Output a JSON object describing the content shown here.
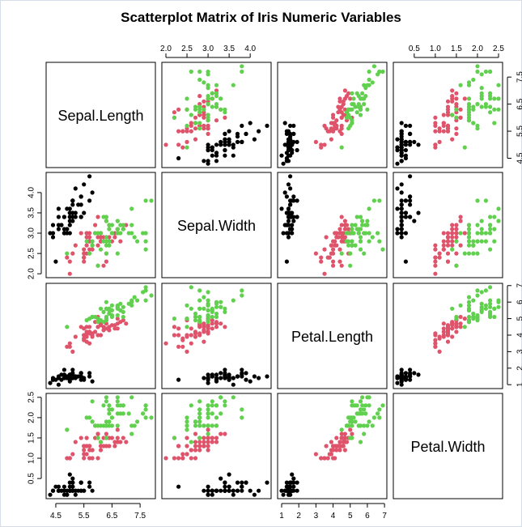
{
  "chart_data": {
    "type": "scatter",
    "title": "Scatterplot Matrix of Iris Numeric Variables",
    "variables": [
      "Sepal.Length",
      "Sepal.Width",
      "Petal.Length",
      "Petal.Width"
    ],
    "ranges": {
      "Sepal.Length": [
        4.3,
        7.9
      ],
      "Sepal.Width": [
        2.0,
        4.4
      ],
      "Petal.Length": [
        1.0,
        6.9
      ],
      "Petal.Width": [
        0.1,
        2.5
      ]
    },
    "ticks": {
      "Sepal.Length": [
        "4.5",
        "5.5",
        "6.5",
        "7.5"
      ],
      "Sepal.Width": [
        "2.0",
        "2.5",
        "3.0",
        "3.5",
        "4.0"
      ],
      "Petal.Length": [
        "1",
        "2",
        "3",
        "4",
        "5",
        "6",
        "7"
      ],
      "Petal.Width": [
        "0.5",
        "1.0",
        "1.5",
        "2.0",
        "2.5"
      ]
    },
    "groups": [
      {
        "color": "#000000",
        "points": [
          [
            5.1,
            3.5,
            1.4,
            0.2
          ],
          [
            4.9,
            3.0,
            1.4,
            0.2
          ],
          [
            4.7,
            3.2,
            1.3,
            0.2
          ],
          [
            4.6,
            3.1,
            1.5,
            0.2
          ],
          [
            5.0,
            3.6,
            1.4,
            0.2
          ],
          [
            5.4,
            3.9,
            1.7,
            0.4
          ],
          [
            4.6,
            3.4,
            1.4,
            0.3
          ],
          [
            5.0,
            3.4,
            1.5,
            0.2
          ],
          [
            4.4,
            2.9,
            1.4,
            0.2
          ],
          [
            4.9,
            3.1,
            1.5,
            0.1
          ],
          [
            5.4,
            3.7,
            1.5,
            0.2
          ],
          [
            4.8,
            3.4,
            1.6,
            0.2
          ],
          [
            4.8,
            3.0,
            1.4,
            0.1
          ],
          [
            4.3,
            3.0,
            1.1,
            0.1
          ],
          [
            5.8,
            4.0,
            1.2,
            0.2
          ],
          [
            5.7,
            4.4,
            1.5,
            0.4
          ],
          [
            5.4,
            3.9,
            1.3,
            0.4
          ],
          [
            5.1,
            3.5,
            1.4,
            0.3
          ],
          [
            5.7,
            3.8,
            1.7,
            0.3
          ],
          [
            5.1,
            3.8,
            1.5,
            0.3
          ],
          [
            5.4,
            3.4,
            1.7,
            0.2
          ],
          [
            5.1,
            3.7,
            1.5,
            0.4
          ],
          [
            4.6,
            3.6,
            1.0,
            0.2
          ],
          [
            5.1,
            3.3,
            1.7,
            0.5
          ],
          [
            4.8,
            3.4,
            1.9,
            0.2
          ],
          [
            5.0,
            3.0,
            1.6,
            0.2
          ],
          [
            5.0,
            3.4,
            1.6,
            0.4
          ],
          [
            5.2,
            3.5,
            1.5,
            0.2
          ],
          [
            5.2,
            3.4,
            1.4,
            0.2
          ],
          [
            4.7,
            3.2,
            1.6,
            0.2
          ],
          [
            4.8,
            3.1,
            1.6,
            0.2
          ],
          [
            5.4,
            3.4,
            1.5,
            0.4
          ],
          [
            5.2,
            4.1,
            1.5,
            0.1
          ],
          [
            5.5,
            4.2,
            1.4,
            0.2
          ],
          [
            4.9,
            3.1,
            1.5,
            0.2
          ],
          [
            5.0,
            3.2,
            1.2,
            0.2
          ],
          [
            5.5,
            3.5,
            1.3,
            0.2
          ],
          [
            4.9,
            3.6,
            1.4,
            0.1
          ],
          [
            4.4,
            3.0,
            1.3,
            0.2
          ],
          [
            5.1,
            3.4,
            1.5,
            0.2
          ],
          [
            5.0,
            3.5,
            1.3,
            0.3
          ],
          [
            4.5,
            2.3,
            1.3,
            0.3
          ],
          [
            4.4,
            3.2,
            1.3,
            0.2
          ],
          [
            5.0,
            3.5,
            1.6,
            0.6
          ],
          [
            5.1,
            3.8,
            1.9,
            0.4
          ],
          [
            4.8,
            3.0,
            1.4,
            0.3
          ],
          [
            5.1,
            3.8,
            1.6,
            0.2
          ],
          [
            4.6,
            3.2,
            1.4,
            0.2
          ],
          [
            5.3,
            3.7,
            1.5,
            0.2
          ],
          [
            5.0,
            3.3,
            1.4,
            0.2
          ]
        ]
      },
      {
        "color": "#df536b",
        "points": [
          [
            7.0,
            3.2,
            4.7,
            1.4
          ],
          [
            6.4,
            3.2,
            4.5,
            1.5
          ],
          [
            6.9,
            3.1,
            4.9,
            1.5
          ],
          [
            5.5,
            2.3,
            4.0,
            1.3
          ],
          [
            6.5,
            2.8,
            4.6,
            1.5
          ],
          [
            5.7,
            2.8,
            4.5,
            1.3
          ],
          [
            6.3,
            3.3,
            4.7,
            1.6
          ],
          [
            4.9,
            2.4,
            3.3,
            1.0
          ],
          [
            6.6,
            2.9,
            4.6,
            1.3
          ],
          [
            5.2,
            2.7,
            3.9,
            1.4
          ],
          [
            5.0,
            2.0,
            3.5,
            1.0
          ],
          [
            5.9,
            3.0,
            4.2,
            1.5
          ],
          [
            6.0,
            2.2,
            4.0,
            1.0
          ],
          [
            6.1,
            2.9,
            4.7,
            1.4
          ],
          [
            5.6,
            2.9,
            3.6,
            1.3
          ],
          [
            6.7,
            3.1,
            4.4,
            1.4
          ],
          [
            5.6,
            3.0,
            4.5,
            1.5
          ],
          [
            5.8,
            2.7,
            4.1,
            1.0
          ],
          [
            6.2,
            2.2,
            4.5,
            1.5
          ],
          [
            5.6,
            2.5,
            3.9,
            1.1
          ],
          [
            5.9,
            3.2,
            4.8,
            1.8
          ],
          [
            6.1,
            2.8,
            4.0,
            1.3
          ],
          [
            6.3,
            2.5,
            4.9,
            1.5
          ],
          [
            6.1,
            2.8,
            4.7,
            1.2
          ],
          [
            6.4,
            2.9,
            4.3,
            1.3
          ],
          [
            6.6,
            3.0,
            4.4,
            1.4
          ],
          [
            6.8,
            2.8,
            4.8,
            1.4
          ],
          [
            6.7,
            3.0,
            5.0,
            1.7
          ],
          [
            6.0,
            2.9,
            4.5,
            1.5
          ],
          [
            5.7,
            2.6,
            3.5,
            1.0
          ],
          [
            5.5,
            2.4,
            3.8,
            1.1
          ],
          [
            5.5,
            2.4,
            3.7,
            1.0
          ],
          [
            5.8,
            2.7,
            3.9,
            1.2
          ],
          [
            6.0,
            2.7,
            5.1,
            1.6
          ],
          [
            5.4,
            3.0,
            4.5,
            1.5
          ],
          [
            6.0,
            3.4,
            4.5,
            1.6
          ],
          [
            6.7,
            3.1,
            4.7,
            1.5
          ],
          [
            6.3,
            2.3,
            4.4,
            1.3
          ],
          [
            5.6,
            3.0,
            4.1,
            1.3
          ],
          [
            5.5,
            2.5,
            4.0,
            1.3
          ],
          [
            5.5,
            2.6,
            4.4,
            1.2
          ],
          [
            6.1,
            3.0,
            4.6,
            1.4
          ],
          [
            5.8,
            2.6,
            4.0,
            1.2
          ],
          [
            5.0,
            2.3,
            3.3,
            1.0
          ],
          [
            5.6,
            2.7,
            4.2,
            1.3
          ],
          [
            5.7,
            3.0,
            4.2,
            1.2
          ],
          [
            5.7,
            2.9,
            4.2,
            1.3
          ],
          [
            6.2,
            2.9,
            4.3,
            1.3
          ],
          [
            5.1,
            2.5,
            3.0,
            1.1
          ],
          [
            5.7,
            2.8,
            4.1,
            1.3
          ]
        ]
      },
      {
        "color": "#61d04f",
        "points": [
          [
            6.3,
            3.3,
            6.0,
            2.5
          ],
          [
            5.8,
            2.7,
            5.1,
            1.9
          ],
          [
            7.1,
            3.0,
            5.9,
            2.1
          ],
          [
            6.3,
            2.9,
            5.6,
            1.8
          ],
          [
            6.5,
            3.0,
            5.8,
            2.2
          ],
          [
            7.6,
            3.0,
            6.6,
            2.1
          ],
          [
            4.9,
            2.5,
            4.5,
            1.7
          ],
          [
            7.3,
            2.9,
            6.3,
            1.8
          ],
          [
            6.7,
            2.5,
            5.8,
            1.8
          ],
          [
            7.2,
            3.6,
            6.1,
            2.5
          ],
          [
            6.5,
            3.2,
            5.1,
            2.0
          ],
          [
            6.4,
            2.7,
            5.3,
            1.9
          ],
          [
            6.8,
            3.0,
            5.5,
            2.1
          ],
          [
            5.7,
            2.5,
            5.0,
            2.0
          ],
          [
            5.8,
            2.8,
            5.1,
            2.4
          ],
          [
            6.4,
            3.2,
            5.3,
            2.3
          ],
          [
            6.5,
            3.0,
            5.5,
            1.8
          ],
          [
            7.7,
            3.8,
            6.7,
            2.2
          ],
          [
            7.7,
            2.6,
            6.9,
            2.3
          ],
          [
            6.0,
            2.2,
            5.0,
            1.5
          ],
          [
            6.9,
            3.2,
            5.7,
            2.3
          ],
          [
            5.6,
            2.8,
            4.9,
            2.0
          ],
          [
            7.7,
            2.8,
            6.7,
            2.0
          ],
          [
            6.3,
            2.7,
            4.9,
            1.8
          ],
          [
            6.7,
            3.3,
            5.7,
            2.1
          ],
          [
            7.2,
            3.2,
            6.0,
            1.8
          ],
          [
            6.2,
            2.8,
            4.8,
            1.8
          ],
          [
            6.1,
            3.0,
            4.9,
            1.8
          ],
          [
            6.4,
            2.8,
            5.6,
            2.1
          ],
          [
            7.2,
            3.0,
            5.8,
            1.6
          ],
          [
            7.4,
            2.8,
            6.1,
            1.9
          ],
          [
            7.9,
            3.8,
            6.4,
            2.0
          ],
          [
            6.4,
            2.8,
            5.6,
            2.2
          ],
          [
            6.3,
            2.8,
            5.1,
            1.5
          ],
          [
            6.1,
            2.6,
            5.6,
            1.4
          ],
          [
            7.7,
            3.0,
            6.1,
            2.3
          ],
          [
            6.3,
            3.4,
            5.6,
            2.4
          ],
          [
            6.4,
            3.1,
            5.5,
            1.8
          ],
          [
            6.0,
            3.0,
            4.8,
            1.8
          ],
          [
            6.9,
            3.1,
            5.4,
            2.1
          ],
          [
            6.7,
            3.1,
            5.6,
            2.4
          ],
          [
            6.9,
            3.1,
            5.1,
            2.3
          ],
          [
            5.8,
            2.7,
            5.1,
            1.9
          ],
          [
            6.8,
            3.2,
            5.9,
            2.3
          ],
          [
            6.7,
            3.3,
            5.7,
            2.5
          ],
          [
            6.7,
            3.0,
            5.2,
            2.3
          ],
          [
            6.3,
            2.5,
            5.0,
            1.9
          ],
          [
            6.5,
            3.0,
            5.2,
            2.0
          ],
          [
            6.2,
            3.4,
            5.4,
            2.3
          ],
          [
            5.9,
            3.0,
            5.1,
            1.8
          ]
        ]
      }
    ],
    "grid": false,
    "legend": "none"
  }
}
